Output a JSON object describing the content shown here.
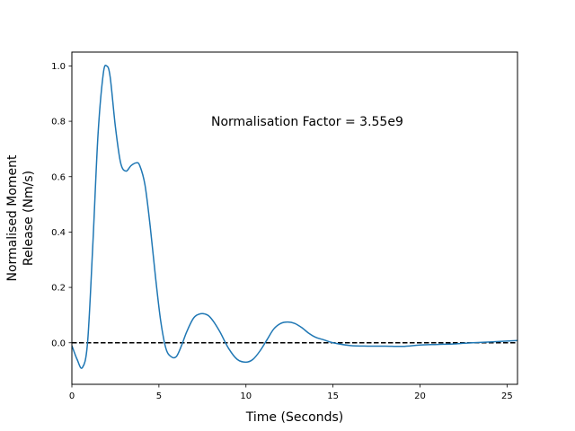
{
  "chart_data": {
    "type": "line",
    "title": "",
    "xlabel": "Time (Seconds)",
    "ylabel_lines": [
      "Normalised Moment",
      "Release (Nm/s)"
    ],
    "xlim": [
      0,
      25.6
    ],
    "ylim": [
      -0.15,
      1.05
    ],
    "grid": false,
    "x_ticks": [
      0,
      5,
      10,
      15,
      20,
      25
    ],
    "x_tick_labels": [
      "0",
      "5",
      "10",
      "15",
      "20",
      "25"
    ],
    "y_ticks": [
      0.0,
      0.2,
      0.4,
      0.6,
      0.8,
      1.0
    ],
    "y_tick_labels": [
      "0.0",
      "0.2",
      "0.4",
      "0.6",
      "0.8",
      "1.0"
    ],
    "annotation": {
      "text": "Normalisation Factor = 3.55e9",
      "x": 8.0,
      "y": 0.8
    },
    "reference_line": {
      "y": 0.0,
      "style": "dashed",
      "color": "#000000"
    },
    "series": [
      {
        "color": "#1f77b4",
        "x": [
          0,
          0.3,
          0.6,
          0.9,
          1.2,
          1.5,
          1.8,
          2.0,
          2.2,
          2.5,
          2.8,
          3.1,
          3.4,
          3.7,
          3.9,
          4.2,
          4.5,
          4.8,
          5.1,
          5.4,
          5.7,
          6.0,
          6.3,
          6.6,
          7.0,
          7.4,
          7.8,
          8.1,
          8.5,
          9.0,
          9.5,
          10.0,
          10.4,
          10.8,
          11.2,
          11.6,
          12.0,
          12.4,
          12.8,
          13.2,
          13.6,
          14.0,
          14.5,
          15.0,
          16.0,
          17.0,
          18.0,
          19.0,
          20.0,
          21.0,
          22.0,
          23.0,
          24.0,
          25.6
        ],
        "y": [
          -0.01,
          -0.06,
          -0.09,
          0.0,
          0.35,
          0.75,
          0.97,
          1.0,
          0.96,
          0.78,
          0.65,
          0.62,
          0.64,
          0.65,
          0.64,
          0.57,
          0.42,
          0.24,
          0.08,
          -0.02,
          -0.05,
          -0.05,
          -0.01,
          0.04,
          0.09,
          0.105,
          0.1,
          0.08,
          0.04,
          -0.02,
          -0.06,
          -0.07,
          -0.06,
          -0.03,
          0.01,
          0.05,
          0.07,
          0.075,
          0.07,
          0.055,
          0.035,
          0.02,
          0.01,
          0.0,
          -0.01,
          -0.012,
          -0.012,
          -0.013,
          -0.008,
          -0.006,
          -0.004,
          0.0,
          0.003,
          0.008
        ]
      }
    ]
  }
}
